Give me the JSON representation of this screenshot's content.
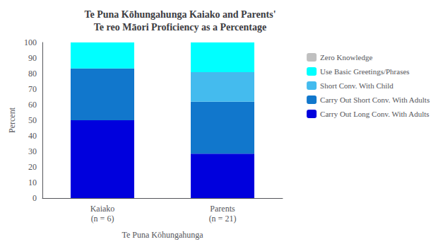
{
  "chart_data": {
    "type": "bar",
    "title": "Te Puna Kōhungahunga Kaiako and Parents'\nTe reo Māori Proficiency as a Percentage",
    "xlabel": "Te Puna Kōhungahunga",
    "ylabel": "Percent",
    "categories": [
      "Kaiako\n(n = 6)",
      "Parents\n(n = 21)"
    ],
    "series": [
      {
        "name": "Zero Knowledge",
        "color": "#c0c0c0",
        "values": [
          0,
          0
        ]
      },
      {
        "name": "Use Basic Greetings/Phrases",
        "color": "#00ffff",
        "values": [
          16.67,
          19.05
        ]
      },
      {
        "name": "Short Conv. With Child",
        "color": "#44bbee",
        "values": [
          0,
          19.05
        ]
      },
      {
        "name": "Carry Out Short Conv. With Adults",
        "color": "#1177cc",
        "values": [
          33.33,
          33.33
        ]
      },
      {
        "name": "Carry Out Long Conv. With Adults",
        "color": "#0000dd",
        "values": [
          50.0,
          28.57
        ]
      }
    ],
    "stacked": true,
    "ylim": [
      0,
      100
    ],
    "yticks": [
      0,
      10,
      20,
      30,
      40,
      50,
      60,
      70,
      80,
      90,
      100
    ],
    "grid": false,
    "legend": "right"
  }
}
